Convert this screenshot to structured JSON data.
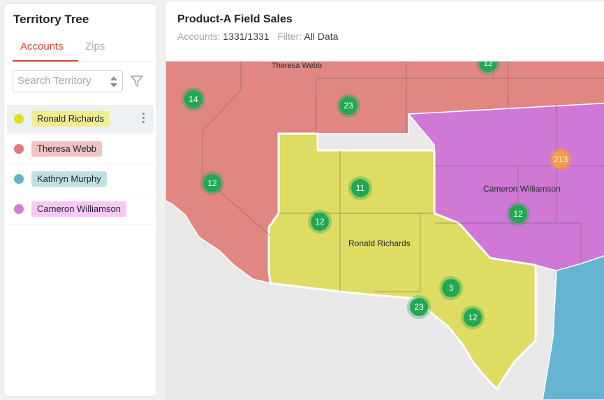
{
  "sidebar": {
    "title": "Territory Tree",
    "tabs": [
      {
        "label": "Accounts",
        "active": true
      },
      {
        "label": "Zips",
        "active": false
      }
    ],
    "search": {
      "placeholder": "Search Territory",
      "value": ""
    },
    "territories": [
      {
        "name": "Ronald Richards",
        "dot_color": "#e3dd1b",
        "pill_color": "#f1ee8f",
        "selected": true
      },
      {
        "name": "Theresa Webb",
        "dot_color": "#e07c7c",
        "pill_color": "#f2c4c1",
        "selected": false
      },
      {
        "name": "Kathryn Murphy",
        "dot_color": "#62b2c9",
        "pill_color": "#bfe0e3",
        "selected": false
      },
      {
        "name": "Cameron Williamson",
        "dot_color": "#d57ad8",
        "pill_color": "#f8c8f8",
        "selected": false
      }
    ]
  },
  "header": {
    "title": "Product-A Field Sales",
    "accounts_label": "Accounts:",
    "accounts_value": "1331/1331",
    "filter_label": "Filter:",
    "filter_value": "All Data"
  },
  "map": {
    "colors": {
      "land": "#e8e8e8",
      "theresa": "#e18681",
      "cameron": "#cf78d6",
      "kathryn": "#65b5d2",
      "ronald": "#dedc62",
      "cluster_green": "#22a753",
      "cluster_orange": "#f39a4b"
    },
    "territory_labels": {
      "theresa": "Theresa Webb",
      "cameron": "Cameron Williamson",
      "ronald": "Ronald Richards"
    },
    "clusters": [
      {
        "id": "c1",
        "count": "12",
        "color": "green"
      },
      {
        "id": "c2",
        "count": "14",
        "color": "green"
      },
      {
        "id": "c3",
        "count": "23",
        "color": "green"
      },
      {
        "id": "c4",
        "count": "12",
        "color": "green"
      },
      {
        "id": "c5",
        "count": "11",
        "color": "green"
      },
      {
        "id": "c6",
        "count": "12",
        "color": "green"
      },
      {
        "id": "c7",
        "count": "213",
        "color": "orange"
      },
      {
        "id": "c8",
        "count": "12",
        "color": "green"
      },
      {
        "id": "c9",
        "count": "3",
        "color": "green"
      },
      {
        "id": "c10",
        "count": "23",
        "color": "green"
      },
      {
        "id": "c11",
        "count": "12",
        "color": "green"
      }
    ]
  }
}
